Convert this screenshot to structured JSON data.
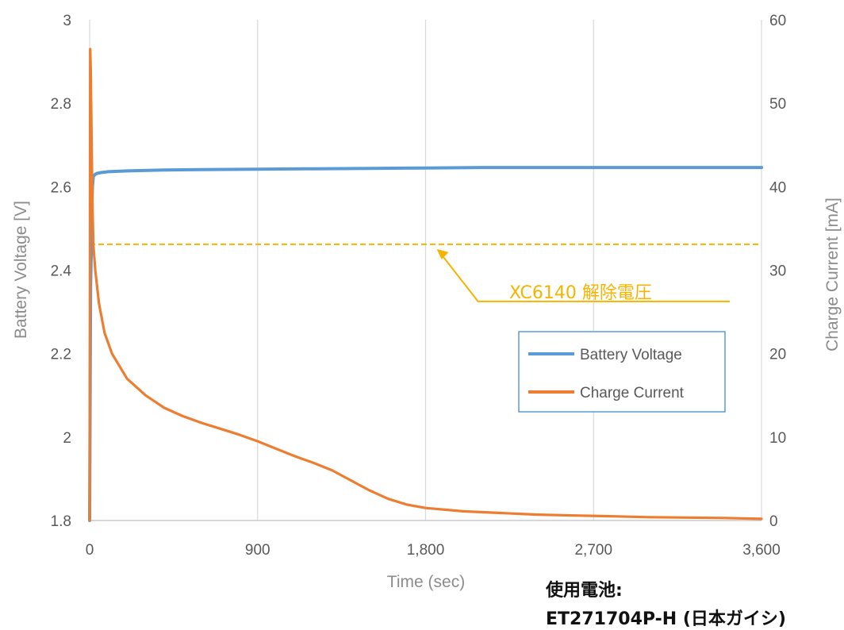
{
  "chart_data": {
    "type": "line",
    "title": "",
    "xlabel": "Time (sec)",
    "ylabel_left": "Battery Voltage [V]",
    "ylabel_right": "Charge Current [mA]",
    "xlim": [
      0,
      3600
    ],
    "ylim_left": [
      1.8,
      3.0
    ],
    "ylim_right": [
      0,
      60
    ],
    "x_ticks": [
      0,
      900,
      1800,
      2700,
      3600
    ],
    "x_tick_labels": [
      "0",
      "900",
      "1,800",
      "2,700",
      "3,600"
    ],
    "y_left_ticks": [
      1.8,
      2.0,
      2.2,
      2.4,
      2.6,
      2.8,
      3.0
    ],
    "y_left_tick_labels": [
      "1.8",
      "2",
      "2.2",
      "2.4",
      "2.6",
      "2.8",
      "3"
    ],
    "y_right_ticks": [
      0,
      10,
      20,
      30,
      40,
      50,
      60
    ],
    "y_right_tick_labels": [
      "0",
      "10",
      "20",
      "30",
      "40",
      "50",
      "60"
    ],
    "grid": "vertical",
    "legend_position": "right-middle",
    "series": [
      {
        "name": "Battery Voltage",
        "axis": "left",
        "color": "#5b9bd5",
        "x": [
          0,
          5,
          10,
          15,
          20,
          30,
          40,
          60,
          100,
          200,
          400,
          600,
          900,
          1200,
          1500,
          1800,
          2100,
          2400,
          2700,
          3000,
          3300,
          3600
        ],
        "y": [
          1.8,
          2.36,
          2.48,
          2.6,
          2.625,
          2.63,
          2.632,
          2.634,
          2.636,
          2.638,
          2.64,
          2.641,
          2.642,
          2.643,
          2.644,
          2.645,
          2.646,
          2.646,
          2.646,
          2.646,
          2.646,
          2.646
        ]
      },
      {
        "name": "Charge Current",
        "axis": "right",
        "color": "#ed7d31",
        "x": [
          0,
          3,
          6,
          10,
          15,
          20,
          30,
          50,
          80,
          120,
          200,
          300,
          400,
          500,
          600,
          700,
          800,
          900,
          1000,
          1100,
          1200,
          1300,
          1400,
          1500,
          1600,
          1700,
          1800,
          2000,
          2200,
          2400,
          2600,
          2800,
          3000,
          3200,
          3400,
          3600
        ],
        "y": [
          0,
          56.5,
          54,
          46,
          38,
          33,
          30,
          26,
          22.5,
          20,
          17,
          15,
          13.5,
          12.5,
          11.7,
          11,
          10.3,
          9.5,
          8.6,
          7.7,
          6.9,
          6.0,
          4.8,
          3.6,
          2.6,
          1.9,
          1.5,
          1.1,
          0.9,
          0.7,
          0.6,
          0.5,
          0.4,
          0.35,
          0.3,
          0.2
        ]
      }
    ],
    "reference_line": {
      "label": "XC6140 解除電圧",
      "axis": "left",
      "value": 2.462,
      "color": "#f5b400",
      "arrow_target_x": 1860
    }
  },
  "note": {
    "line1": "使用電池:",
    "line2": "ET271704P-H (日本ガイシ)"
  }
}
